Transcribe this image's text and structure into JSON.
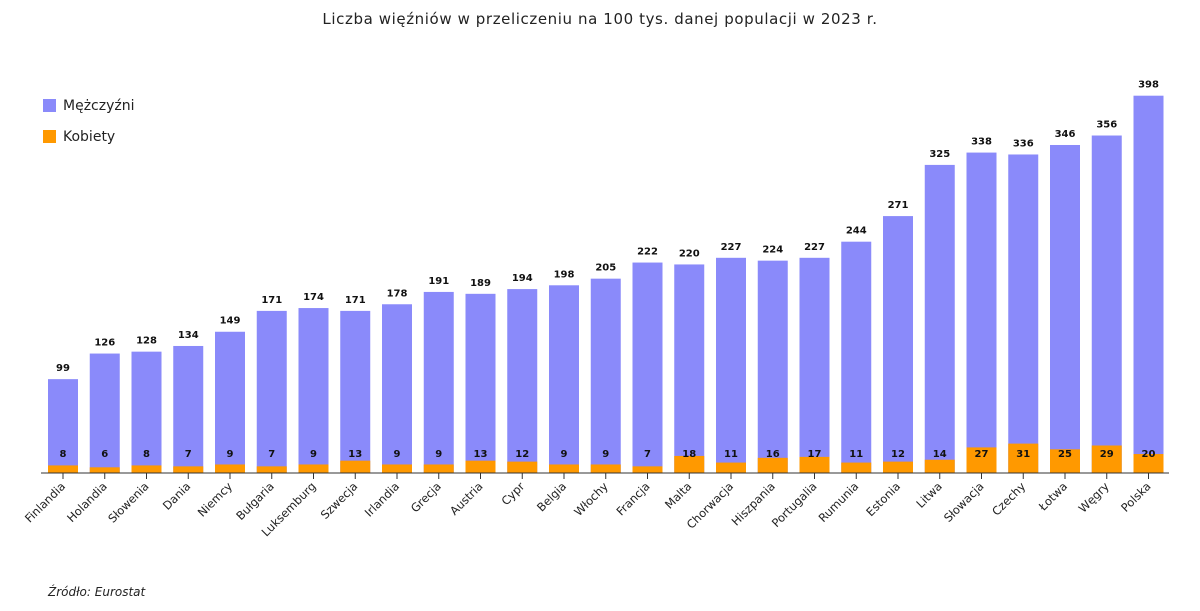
{
  "chart_data": {
    "type": "bar",
    "title": "Liczba więźniów w przeliczeniu na 100 tys. danej populacji w 2023 r.",
    "xlabel": "",
    "ylabel": "",
    "ylim": [
      0,
      410
    ],
    "grid": false,
    "legend_position": "top-left",
    "categories": [
      "Finlandia",
      "Holandia",
      "Słowenia",
      "Dania",
      "Niemcy",
      "Bułgaria",
      "Luksemburg",
      "Szwecja",
      "Irlandia",
      "Grecja",
      "Austria",
      "Cypr",
      "Belgia",
      "Włochy",
      "Francja",
      "Malta",
      "Chorwacja",
      "Hiszpania",
      "Portugalia",
      "Rumunia",
      "Estonia",
      "Litwa",
      "Słowacja",
      "Czechy",
      "Łotwa",
      "Węgry",
      "Polska"
    ],
    "series": [
      {
        "name": "Mężczyźni",
        "color": "#8a8afa",
        "values": [
          99,
          126,
          128,
          134,
          149,
          171,
          174,
          171,
          178,
          191,
          189,
          194,
          198,
          205,
          222,
          220,
          227,
          224,
          227,
          244,
          271,
          325,
          338,
          336,
          346,
          356,
          398
        ]
      },
      {
        "name": "Kobiety",
        "color": "#ff9900",
        "values": [
          8,
          6,
          8,
          7,
          9,
          7,
          9,
          13,
          9,
          9,
          13,
          12,
          9,
          9,
          7,
          18,
          11,
          16,
          17,
          11,
          12,
          14,
          27,
          31,
          25,
          29,
          20
        ]
      }
    ]
  },
  "source": "Źródło: Eurostat"
}
